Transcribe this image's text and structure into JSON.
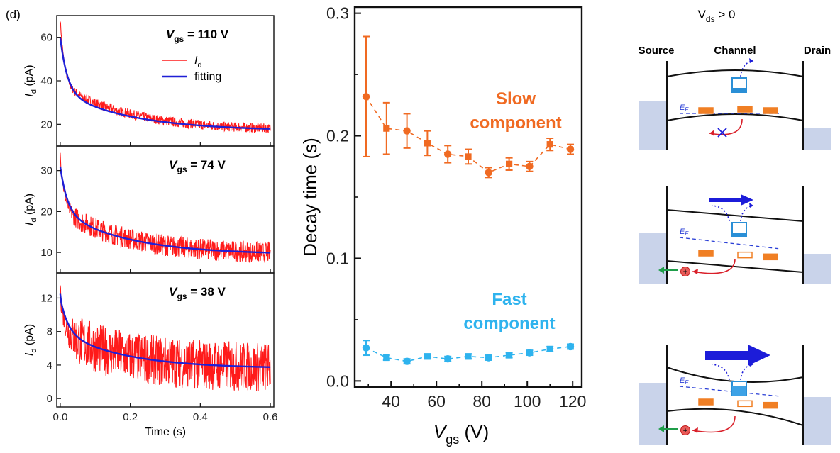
{
  "panel_label": "(d)",
  "chart_data": [
    {
      "type": "line",
      "panel": "left-top",
      "annotation": "V_gs = 110 V",
      "annotation_parts": [
        "V",
        "gs",
        " = 110 V"
      ],
      "ylabel_parts": [
        "I",
        "d",
        " (pA)"
      ],
      "xlabel": "",
      "xlim": [
        -0.01,
        0.61
      ],
      "ylim": [
        10,
        70
      ],
      "xticks": [
        "0.0",
        "0.2",
        "0.4",
        "0.6"
      ],
      "yticks": [
        20,
        40,
        60
      ],
      "legend": {
        "position": "top-right",
        "entries": [
          [
            "I",
            "d"
          ],
          [
            "fitting",
            ""
          ]
        ]
      },
      "series": [
        {
          "name": "I_d",
          "color": "#ff1a1a",
          "start": 68,
          "plateau": 17,
          "fast_amp": 30,
          "fast_tau": 0.012,
          "slow_amp": 21,
          "slow_tau": 0.2,
          "noise": 2.2
        },
        {
          "name": "fitting",
          "color": "#1f1fd6",
          "start": 60,
          "plateau": 17,
          "fast_amp": 25,
          "fast_tau": 0.02,
          "slow_amp": 18,
          "slow_tau": 0.2
        }
      ]
    },
    {
      "type": "line",
      "panel": "left-middle",
      "annotation_parts": [
        "V",
        "gs",
        " = 74 V"
      ],
      "ylabel_parts": [
        "I",
        "d",
        " (pA)"
      ],
      "xlim": [
        -0.01,
        0.61
      ],
      "ylim": [
        5,
        36
      ],
      "xticks": [
        "0.0",
        "0.2",
        "0.4",
        "0.6"
      ],
      "yticks": [
        10,
        20,
        30
      ],
      "series": [
        {
          "name": "I_d",
          "color": "#ff1a1a",
          "start": 34,
          "plateau": 9.5,
          "fast_amp": 13,
          "fast_tau": 0.012,
          "slow_amp": 11,
          "slow_tau": 0.19,
          "noise": 2.6
        },
        {
          "name": "fitting",
          "color": "#1f1fd6",
          "start": 31,
          "plateau": 9.5,
          "fast_amp": 11,
          "fast_tau": 0.02,
          "slow_amp": 10.5,
          "slow_tau": 0.19
        }
      ]
    },
    {
      "type": "line",
      "panel": "left-bottom",
      "annotation_parts": [
        "V",
        "gs",
        " = 38 V"
      ],
      "ylabel_parts": [
        "I",
        "d",
        " (pA)"
      ],
      "xlabel": "Time (s)",
      "xlim": [
        -0.01,
        0.61
      ],
      "ylim": [
        -1,
        15
      ],
      "xticks": [
        "0.0",
        "0.2",
        "0.4",
        "0.6"
      ],
      "yticks": [
        0,
        4,
        8,
        12
      ],
      "series": [
        {
          "name": "I_d",
          "color": "#ff1a1a",
          "start": 14,
          "plateau": 3.6,
          "fast_amp": 4.5,
          "fast_tau": 0.012,
          "slow_amp": 4.4,
          "slow_tau": 0.18,
          "noise": 3.0
        },
        {
          "name": "fitting",
          "color": "#1f1fd6",
          "start": 12.5,
          "plateau": 3.6,
          "fast_amp": 4.0,
          "fast_tau": 0.022,
          "slow_amp": 4.4,
          "slow_tau": 0.18
        }
      ]
    },
    {
      "type": "scatter",
      "panel": "middle",
      "ylabel": "Decay time (s)",
      "xlabel_parts": [
        "V",
        "gs",
        " (V)"
      ],
      "xlim": [
        24,
        124
      ],
      "ylim": [
        -0.005,
        0.305
      ],
      "xticks": [
        40,
        60,
        80,
        100,
        120
      ],
      "yticks": [
        "0.0",
        "0.1",
        "0.2",
        "0.3"
      ],
      "series": [
        {
          "name": "Slow component",
          "label_lines": [
            "Slow",
            "component"
          ],
          "color": "#f06a22",
          "x": [
            29,
            38,
            47,
            56,
            65,
            74,
            83,
            92,
            101,
            110,
            119
          ],
          "y": [
            0.232,
            0.206,
            0.204,
            0.194,
            0.185,
            0.183,
            0.17,
            0.177,
            0.175,
            0.193,
            0.189
          ],
          "err": [
            0.049,
            0.021,
            0.014,
            0.01,
            0.007,
            0.006,
            0.004,
            0.005,
            0.004,
            0.005,
            0.004
          ]
        },
        {
          "name": "Fast component",
          "label_lines": [
            "Fast",
            "component"
          ],
          "color": "#2eb3ee",
          "x": [
            29,
            38,
            47,
            56,
            65,
            74,
            83,
            92,
            101,
            110,
            119
          ],
          "y": [
            0.027,
            0.019,
            0.016,
            0.02,
            0.018,
            0.02,
            0.019,
            0.021,
            0.023,
            0.026,
            0.028
          ],
          "err": [
            0.006,
            0.002,
            0.002,
            0.002,
            0.002,
            0.002,
            0.002,
            0.002,
            0.002,
            0.002,
            0.002
          ]
        }
      ]
    }
  ],
  "diagram": {
    "condition_parts": [
      "V",
      "ds",
      " > 0"
    ],
    "labels": {
      "source": "Source",
      "channel": "Channel",
      "drain": "Drain"
    },
    "ef_parts": [
      "E",
      "F"
    ],
    "hole_symbol": "+",
    "colors": {
      "band": "#111111",
      "contact": "#c9d3ea",
      "trap": "#f07f24",
      "electron": "#2a8fd6",
      "arrow_blue": "#1c1cd9",
      "arrow_red": "#d9202a",
      "arrow_green": "#1f9e4a"
    }
  }
}
